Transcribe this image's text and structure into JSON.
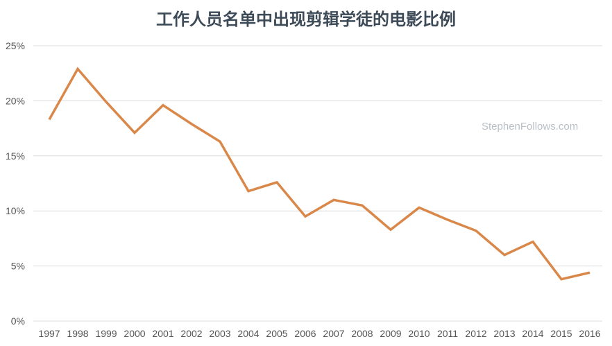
{
  "chart_data": {
    "type": "line",
    "title": "工作人员名单中出现剪辑学徒的电影比例",
    "watermark": "StephenFollows.com",
    "x": [
      "1997",
      "1998",
      "1999",
      "2000",
      "2001",
      "2002",
      "2003",
      "2004",
      "2005",
      "2006",
      "2007",
      "2008",
      "2009",
      "2010",
      "2011",
      "2012",
      "2013",
      "2014",
      "2015",
      "2016"
    ],
    "series": [
      {
        "values": [
          18.3,
          22.9,
          19.9,
          17.1,
          19.6,
          17.9,
          16.3,
          11.8,
          12.6,
          9.5,
          11.0,
          10.5,
          8.3,
          10.3,
          9.2,
          8.2,
          6.0,
          7.2,
          3.8,
          4.4
        ],
        "color": "#d9884a"
      }
    ],
    "yticks": [
      "0%",
      "5%",
      "10%",
      "15%",
      "20%",
      "25%"
    ],
    "ytick_values": [
      0,
      5,
      10,
      15,
      20,
      25
    ],
    "ylim": [
      0,
      25
    ],
    "grid": true,
    "xlabel": "",
    "ylabel": ""
  }
}
